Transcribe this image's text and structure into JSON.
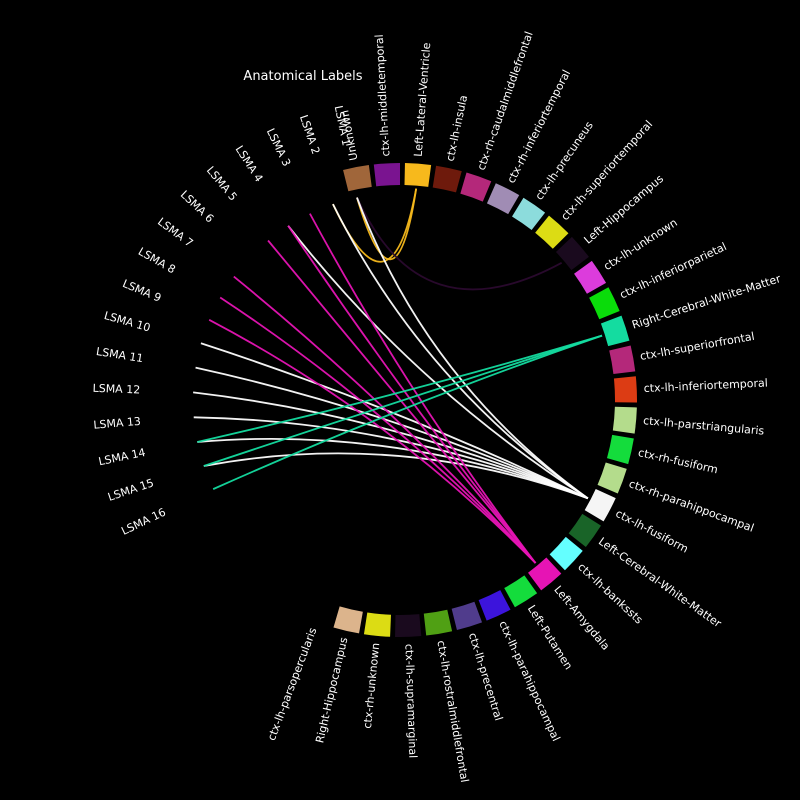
{
  "title": "Anatomical Labels",
  "lsma_labels": [
    "LSMA 1",
    "LSMA 2",
    "LSMA 3",
    "LSMA 4",
    "LSMA 5",
    "LSMA 6",
    "LSMA 7",
    "LSMA 8",
    "LSMA 9",
    "LSMA 10",
    "LSMA 11",
    "LSMA 12",
    "LSMA 13",
    "LSMA 14",
    "LSMA 15",
    "LSMA 16"
  ],
  "regions": [
    {
      "name": "Unknown",
      "color": "#a0663a"
    },
    {
      "name": "ctx-lh-middletemporal",
      "color": "#7a1490"
    },
    {
      "name": "Left-Lateral-Ventricle",
      "color": "#f7b91c"
    },
    {
      "name": "ctx-lh-insula",
      "color": "#6e1a0c"
    },
    {
      "name": "ctx-rh-caudalmiddlefrontal",
      "color": "#b4287a"
    },
    {
      "name": "ctx-rh-inferiortemporal",
      "color": "#a08cb4"
    },
    {
      "name": "ctx-lh-precuneus",
      "color": "#8cdcdc"
    },
    {
      "name": "ctx-lh-superiortemporal",
      "color": "#dcdc14"
    },
    {
      "name": "Left-Hippocampus",
      "color": "#1a0a1e"
    },
    {
      "name": "ctx-lh-unknown",
      "color": "#dc3cdc"
    },
    {
      "name": "ctx-lh-inferiorparietal",
      "color": "#0adc0a"
    },
    {
      "name": "Right-Cerebral-White-Matter",
      "color": "#14dca0"
    },
    {
      "name": "ctx-lh-superiorfrontal",
      "color": "#b4287a"
    },
    {
      "name": "ctx-lh-inferiortemporal",
      "color": "#dc3c14"
    },
    {
      "name": "ctx-lh-parstriangularis",
      "color": "#b4dc8c"
    },
    {
      "name": "ctx-rh-fusiform",
      "color": "#14dc3c"
    },
    {
      "name": "ctx-rh-parahippocampal",
      "color": "#b4dc8c"
    },
    {
      "name": "ctx-lh-fusiform",
      "color": "#f5f5f5"
    },
    {
      "name": "Left-Cerebral-White-Matter",
      "color": "#196428"
    },
    {
      "name": "ctx-lh-bankssts",
      "color": "#64ffff"
    },
    {
      "name": "Left-Amygdala",
      "color": "#e614b4"
    },
    {
      "name": "Left-Putamen",
      "color": "#14dc3c"
    },
    {
      "name": "ctx-lh-parahippocampal",
      "color": "#3c14dc"
    },
    {
      "name": "ctx-lh-precentral",
      "color": "#503c8c"
    },
    {
      "name": "ctx-lh-rostralmiddlefrontal",
      "color": "#50a014"
    },
    {
      "name": "ctx-lh-supramarginal",
      "color": "#1a0a1e"
    },
    {
      "name": "ctx-rh-unknown",
      "color": "#dcdc14"
    },
    {
      "name": "Right-Hippocampus",
      "color": "#dcb48c"
    },
    {
      "name": "ctx-lh-parsopercularis",
      "color": ""
    }
  ],
  "connections": [
    {
      "lsma": 1,
      "region": 2,
      "color": "#f7b91c"
    },
    {
      "lsma": 2,
      "region": 2,
      "color": "#f7b91c"
    },
    {
      "lsma": 1,
      "region": 8,
      "color": "#2a0a2e"
    },
    {
      "lsma": 1,
      "region": 17,
      "color": "#ffffff"
    },
    {
      "lsma": 2,
      "region": 17,
      "color": "#ffffff"
    },
    {
      "lsma": 4,
      "region": 17,
      "color": "#ffffff"
    },
    {
      "lsma": 10,
      "region": 17,
      "color": "#ffffff"
    },
    {
      "lsma": 11,
      "region": 17,
      "color": "#ffffff"
    },
    {
      "lsma": 12,
      "region": 17,
      "color": "#ffffff"
    },
    {
      "lsma": 13,
      "region": 17,
      "color": "#ffffff"
    },
    {
      "lsma": 14,
      "region": 17,
      "color": "#ffffff"
    },
    {
      "lsma": 15,
      "region": 17,
      "color": "#ffffff"
    },
    {
      "lsma": 3,
      "region": 20,
      "color": "#e614b4"
    },
    {
      "lsma": 4,
      "region": 20,
      "color": "#e614b4"
    },
    {
      "lsma": 5,
      "region": 20,
      "color": "#e614b4"
    },
    {
      "lsma": 7,
      "region": 20,
      "color": "#e614b4"
    },
    {
      "lsma": 8,
      "region": 20,
      "color": "#e614b4"
    },
    {
      "lsma": 9,
      "region": 20,
      "color": "#e614b4"
    },
    {
      "lsma": 14,
      "region": 11,
      "color": "#14dca0"
    },
    {
      "lsma": 15,
      "region": 11,
      "color": "#14dca0"
    },
    {
      "lsma": 16,
      "region": 11,
      "color": "#14dca0"
    }
  ]
}
